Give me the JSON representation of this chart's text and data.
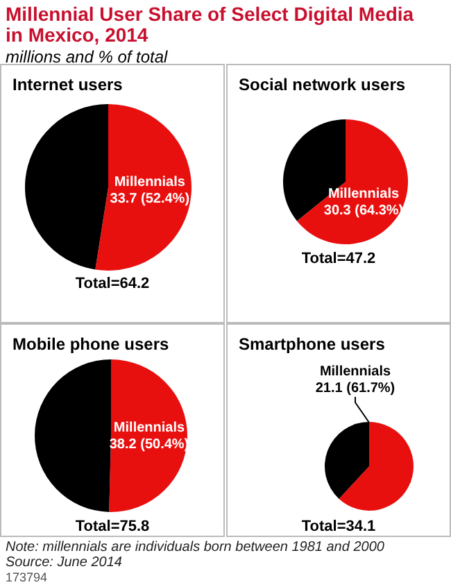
{
  "chart_data": [
    {
      "type": "other",
      "title": "Millennial User Share of Select Digital Media in Mexico, 2014",
      "subtitle": "millions and % of total",
      "annotations": [
        "Note: millennials are individuals born between 1981 and 2000",
        "Source: June 2014",
        "173794"
      ]
    },
    {
      "type": "pie",
      "title": "Internet users",
      "categories": [
        "Millennials",
        null
      ],
      "values": [
        33.7,
        30.5
      ],
      "colors": [
        "#e8100f",
        "#000000"
      ],
      "value_labels": [
        "33.7 (52.4%)",
        null
      ],
      "annotations": [
        "Total=64.2"
      ]
    },
    {
      "type": "pie",
      "title": "Social network users",
      "categories": [
        "Millennials",
        null
      ],
      "values": [
        30.3,
        16.9
      ],
      "colors": [
        "#e8100f",
        "#000000"
      ],
      "value_labels": [
        "30.3 (64.3%)",
        null
      ],
      "annotations": [
        "Total=47.2"
      ]
    },
    {
      "type": "pie",
      "title": "Mobile phone users",
      "categories": [
        "Millennials",
        null
      ],
      "values": [
        38.2,
        37.6
      ],
      "colors": [
        "#e8100f",
        "#000000"
      ],
      "value_labels": [
        "38.2 (50.4%)",
        null
      ],
      "annotations": [
        "Total=75.8"
      ]
    },
    {
      "type": "pie",
      "title": "Smartphone users",
      "categories": [
        "Millennials",
        null
      ],
      "values": [
        21.1,
        13.0
      ],
      "colors": [
        "#e8100f",
        "#000000"
      ],
      "value_labels": [
        "21.1 (61.7%)",
        null
      ],
      "annotations": [
        "Total=34.1"
      ]
    }
  ]
}
